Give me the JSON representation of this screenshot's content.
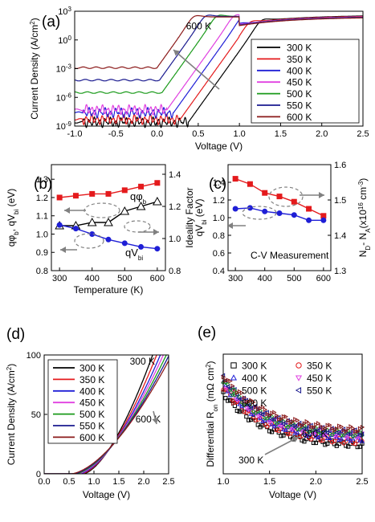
{
  "chart_data": [
    {
      "panel": "(a)",
      "type": "line",
      "xlabel": "Voltage (V)",
      "ylabel": "Current Density (A/cm",
      "ylabel_sup": "2",
      "ylabel_end": ")",
      "xlim": [
        -1.0,
        2.5
      ],
      "ylog": true,
      "ylim_exp": [
        -9,
        3
      ],
      "xticks": [
        "-1.0",
        "-0.5",
        "0.0",
        "0.5",
        "1.0",
        "1.5",
        "2.0",
        "2.5"
      ],
      "yticks_exp": [
        "-9",
        "-6",
        "-3",
        "0",
        "3"
      ],
      "annotations": [
        {
          "text": "600 K",
          "x": 0.45,
          "y_exp": 1.1
        },
        {
          "text": "300 K",
          "x": 1.3,
          "y_exp": -2.9
        }
      ],
      "legend_position": "right",
      "series": [
        {
          "name": "300 K",
          "color": "#000000",
          "rev_exp": -8.6,
          "vt": 0.38,
          "sat_exp": 2.6
        },
        {
          "name": "350 K",
          "color": "#e41a1c",
          "rev_exp": -8.3,
          "vt": 0.28,
          "sat_exp": 2.55
        },
        {
          "name": "400 K",
          "color": "#1f1fd6",
          "rev_exp": -7.6,
          "vt": 0.2,
          "sat_exp": 2.5
        },
        {
          "name": "450 K",
          "color": "#e040e0",
          "rev_exp": -7.3,
          "vt": 0.12,
          "sat_exp": 2.5
        },
        {
          "name": "500 K",
          "color": "#1a9a1a",
          "rev_exp": -5.5,
          "vt": 0.06,
          "sat_exp": 2.45
        },
        {
          "name": "550 K",
          "color": "#1a1a8f",
          "rev_exp": -4.2,
          "vt": 0.03,
          "sat_exp": 2.45
        },
        {
          "name": "600 K",
          "color": "#8b1a1a",
          "rev_exp": -2.9,
          "vt": 0.0,
          "sat_exp": 2.4
        }
      ]
    },
    {
      "panel": "(b)",
      "type": "line",
      "xlabel": "Temperature (K)",
      "ylabel_left": "qφ_b, qV_bi (eV)",
      "ylabel_right": "Ideality Factor",
      "x": [
        300,
        350,
        400,
        450,
        500,
        550,
        600
      ],
      "xlim": [
        275,
        625
      ],
      "ylim_left": [
        0.8,
        1.38
      ],
      "ylim_right": [
        0.8,
        1.46
      ],
      "xticks": [
        "300",
        "400",
        "500",
        "600"
      ],
      "yticks_left": [
        "0.8",
        "0.9",
        "1.0",
        "1.1",
        "1.2",
        "1.3"
      ],
      "yticks_right": [
        "0.8",
        "1.0",
        "1.2",
        "1.4"
      ],
      "series": [
        {
          "name": "qφb",
          "axis": "left",
          "color": "#e41a1c",
          "marker": "square",
          "values": [
            1.2,
            1.21,
            1.22,
            1.22,
            1.24,
            1.26,
            1.28
          ]
        },
        {
          "name": "Ideality",
          "axis": "right",
          "color": "#000000",
          "marker": "triangle",
          "values": [
            1.08,
            1.08,
            1.1,
            1.1,
            1.17,
            1.2,
            1.23
          ]
        },
        {
          "name": "qVbi",
          "axis": "left",
          "color": "#1f1fd6",
          "marker": "circle",
          "values": [
            1.05,
            1.03,
            1.0,
            0.97,
            0.95,
            0.93,
            0.92
          ]
        }
      ],
      "labels": {
        "qphi": "qφ",
        "qphi_sub": "b",
        "qvbi": "qV",
        "qvbi_sub": "bi"
      }
    },
    {
      "panel": "(c)",
      "type": "line",
      "xlabel": "",
      "ylabel_left": "qV_bi (eV)",
      "ylabel_right": "N_D- N_A(x10^16 cm^-3)",
      "x": [
        300,
        350,
        400,
        450,
        500,
        550,
        600
      ],
      "xlim": [
        275,
        625
      ],
      "ylim_left": [
        0.4,
        1.6
      ],
      "ylim_right": [
        1.3,
        1.6
      ],
      "xticks": [
        "300",
        "400",
        "500",
        "600"
      ],
      "yticks_left": [
        "0.4",
        "0.6",
        "0.8",
        "1.0",
        "1.2",
        "1.4"
      ],
      "yticks_right": [
        "1.3",
        "1.4",
        "1.5",
        "1.6"
      ],
      "annotation": "C-V Measurement",
      "series": [
        {
          "name": "ND-NA",
          "axis": "right",
          "color": "#e41a1c",
          "marker": "square",
          "values": [
            1.56,
            1.545,
            1.52,
            1.51,
            1.495,
            1.475,
            1.455
          ]
        },
        {
          "name": "qVbi",
          "axis": "left",
          "color": "#1f1fd6",
          "marker": "circle",
          "values": [
            1.1,
            1.11,
            1.07,
            1.05,
            1.03,
            0.97,
            0.97
          ]
        }
      ]
    },
    {
      "panel": "(d)",
      "type": "line",
      "xlabel": "Voltage (V)",
      "ylabel": "Current Density (A/cm",
      "ylabel_sup": "2",
      "ylabel_end": ")",
      "xlim": [
        0.0,
        2.5
      ],
      "ylim": [
        0,
        100
      ],
      "xticks": [
        "0.0",
        "0.5",
        "1.0",
        "1.5",
        "2.0",
        "2.5"
      ],
      "yticks": [
        "0",
        "50",
        "100"
      ],
      "annotations": [
        {
          "text": "300 K",
          "x": 1.72,
          "y": 92
        },
        {
          "text": "600 K",
          "x": 2.06,
          "y": 50
        }
      ],
      "legend_position": "top-left",
      "series": [
        {
          "name": "300 K",
          "color": "#000000",
          "von": 0.78,
          "k": 58.4
        },
        {
          "name": "350 K",
          "color": "#e41a1c",
          "von": 0.74,
          "k": 51.2
        },
        {
          "name": "400 K",
          "color": "#1f1fd6",
          "von": 0.7,
          "k": 45.6
        },
        {
          "name": "450 K",
          "color": "#e040e0",
          "von": 0.66,
          "k": 41.5
        },
        {
          "name": "500 K",
          "color": "#1a9a1a",
          "von": 0.62,
          "k": 37.9
        },
        {
          "name": "550 K",
          "color": "#1a1a8f",
          "von": 0.58,
          "k": 34.9
        },
        {
          "name": "600 K",
          "color": "#8b1a1a",
          "von": 0.54,
          "k": 32.4
        }
      ]
    },
    {
      "panel": "(e)",
      "type": "scatter",
      "xlabel": "Voltage (V)",
      "ylabel": "Differential R",
      "ylabel_sub": "on",
      "ylabel_end": " (mΩ cm",
      "ylabel_sup": "2",
      "ylabel_close": ")",
      "xlim": [
        1.0,
        2.5
      ],
      "xticks": [
        "1.0",
        "1.5",
        "2.0",
        "2.5"
      ],
      "annotations": [
        {
          "text": "600 K",
          "x": 2.0,
          "frac": 0.62
        },
        {
          "text": "300 K",
          "x": 1.35,
          "frac": 0.17
        }
      ],
      "legend_position": "top",
      "series": [
        {
          "name": "300 K",
          "color": "#000000",
          "marker": "square",
          "r0": 27,
          "rinf": 9
        },
        {
          "name": "350 K",
          "color": "#e41a1c",
          "marker": "circle",
          "r0": 29,
          "rinf": 10
        },
        {
          "name": "400 K",
          "color": "#1f1fd6",
          "marker": "triangle-up",
          "r0": 30,
          "rinf": 11
        },
        {
          "name": "450 K",
          "color": "#e040e0",
          "marker": "triangle-down",
          "r0": 30.5,
          "rinf": 12
        },
        {
          "name": "500 K",
          "color": "#1a9a1a",
          "marker": "diamond",
          "r0": 31,
          "rinf": 12.5
        },
        {
          "name": "550 K",
          "color": "#1a1a8f",
          "marker": "triangle-left",
          "r0": 32,
          "rinf": 13
        },
        {
          "name": "600 K",
          "color": "#8b1a1a",
          "marker": "triangle-right",
          "r0": 33,
          "rinf": 14
        }
      ]
    }
  ]
}
